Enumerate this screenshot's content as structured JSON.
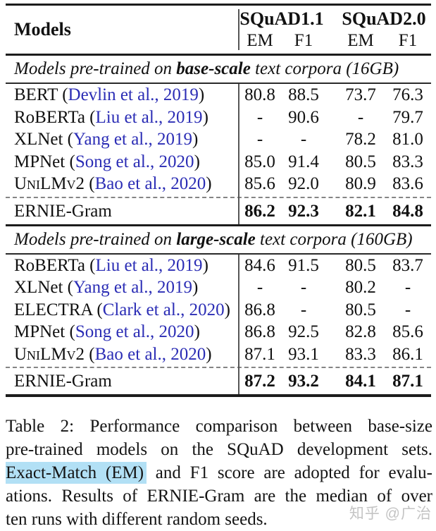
{
  "colors": {
    "citation_blue": "#2b2db5",
    "highlight_blue": "#b2e0f5",
    "rule_black": "#1c1c1c",
    "dashed_gray": "#858585",
    "watermark_gray": "#c4c4c4"
  },
  "table": {
    "header": {
      "models_label": "Models",
      "group1": "SQuAD1.1",
      "group2": "SQuAD2.0",
      "subcols": [
        "EM",
        "F1",
        "EM",
        "F1"
      ]
    },
    "sections": [
      {
        "heading_prefix": "Models pre-trained on ",
        "heading_bold": "base-scale",
        "heading_suffix": " text corpora (16GB)",
        "rows": [
          {
            "model": "BERT",
            "cite": "Devlin et al., 2019",
            "smallcaps": false,
            "values": [
              "80.8",
              "88.5",
              "73.7",
              "76.3"
            ]
          },
          {
            "model": "RoBERTa",
            "cite": "Liu et al., 2019",
            "smallcaps": false,
            "values": [
              "-",
              "90.6",
              "-",
              "79.7"
            ]
          },
          {
            "model": "XLNet",
            "cite": "Yang et al., 2019",
            "smallcaps": false,
            "values": [
              "-",
              "-",
              "78.2",
              "81.0"
            ]
          },
          {
            "model": "MPNet",
            "cite": "Song et al., 2020",
            "smallcaps": false,
            "values": [
              "85.0",
              "91.4",
              "80.5",
              "83.3"
            ]
          },
          {
            "model": "UniLMv2",
            "cite": "Bao et al., 2020",
            "smallcaps": true,
            "values": [
              "85.6",
              "92.0",
              "80.9",
              "83.6"
            ]
          }
        ],
        "final_row": {
          "model": "ERNIE-Gram",
          "values": [
            "86.2",
            "92.3",
            "82.1",
            "84.8"
          ]
        }
      },
      {
        "heading_prefix": "Models pre-trained on ",
        "heading_bold": "large-scale",
        "heading_suffix": " text corpora (160GB)",
        "rows": [
          {
            "model": "RoBERTa",
            "cite": "Liu et al., 2019",
            "smallcaps": false,
            "values": [
              "84.6",
              "91.5",
              "80.5",
              "83.7"
            ]
          },
          {
            "model": "XLNet",
            "cite": "Yang et al., 2019",
            "smallcaps": false,
            "values": [
              "-",
              "-",
              "80.2",
              "-"
            ]
          },
          {
            "model": "ELECTRA",
            "cite": "Clark et al., 2020",
            "smallcaps": false,
            "values": [
              "86.8",
              "-",
              "80.5",
              "-"
            ]
          },
          {
            "model": "MPNet",
            "cite": "Song et al., 2020",
            "smallcaps": false,
            "values": [
              "86.8",
              "92.5",
              "82.8",
              "85.6"
            ]
          },
          {
            "model": "UniLMv2",
            "cite": "Bao et al., 2020",
            "smallcaps": true,
            "values": [
              "87.1",
              "93.1",
              "83.3",
              "86.1"
            ]
          }
        ],
        "final_row": {
          "model": "ERNIE-Gram",
          "values": [
            "87.2",
            "93.2",
            "84.1",
            "87.1"
          ]
        }
      }
    ]
  },
  "caption": {
    "line1": "Table 2: Performance comparison between base-size",
    "line2": "pre-trained models on the SQuAD development sets.",
    "line3_highlight": "Exact-Match (EM)",
    "line3_rest": " and F1 score are adopted for evalu-",
    "line4": "ations. Results of ERNIE-Gram are the median of over",
    "line5": "ten runs with different random seeds."
  },
  "watermark": "知乎 @广治"
}
